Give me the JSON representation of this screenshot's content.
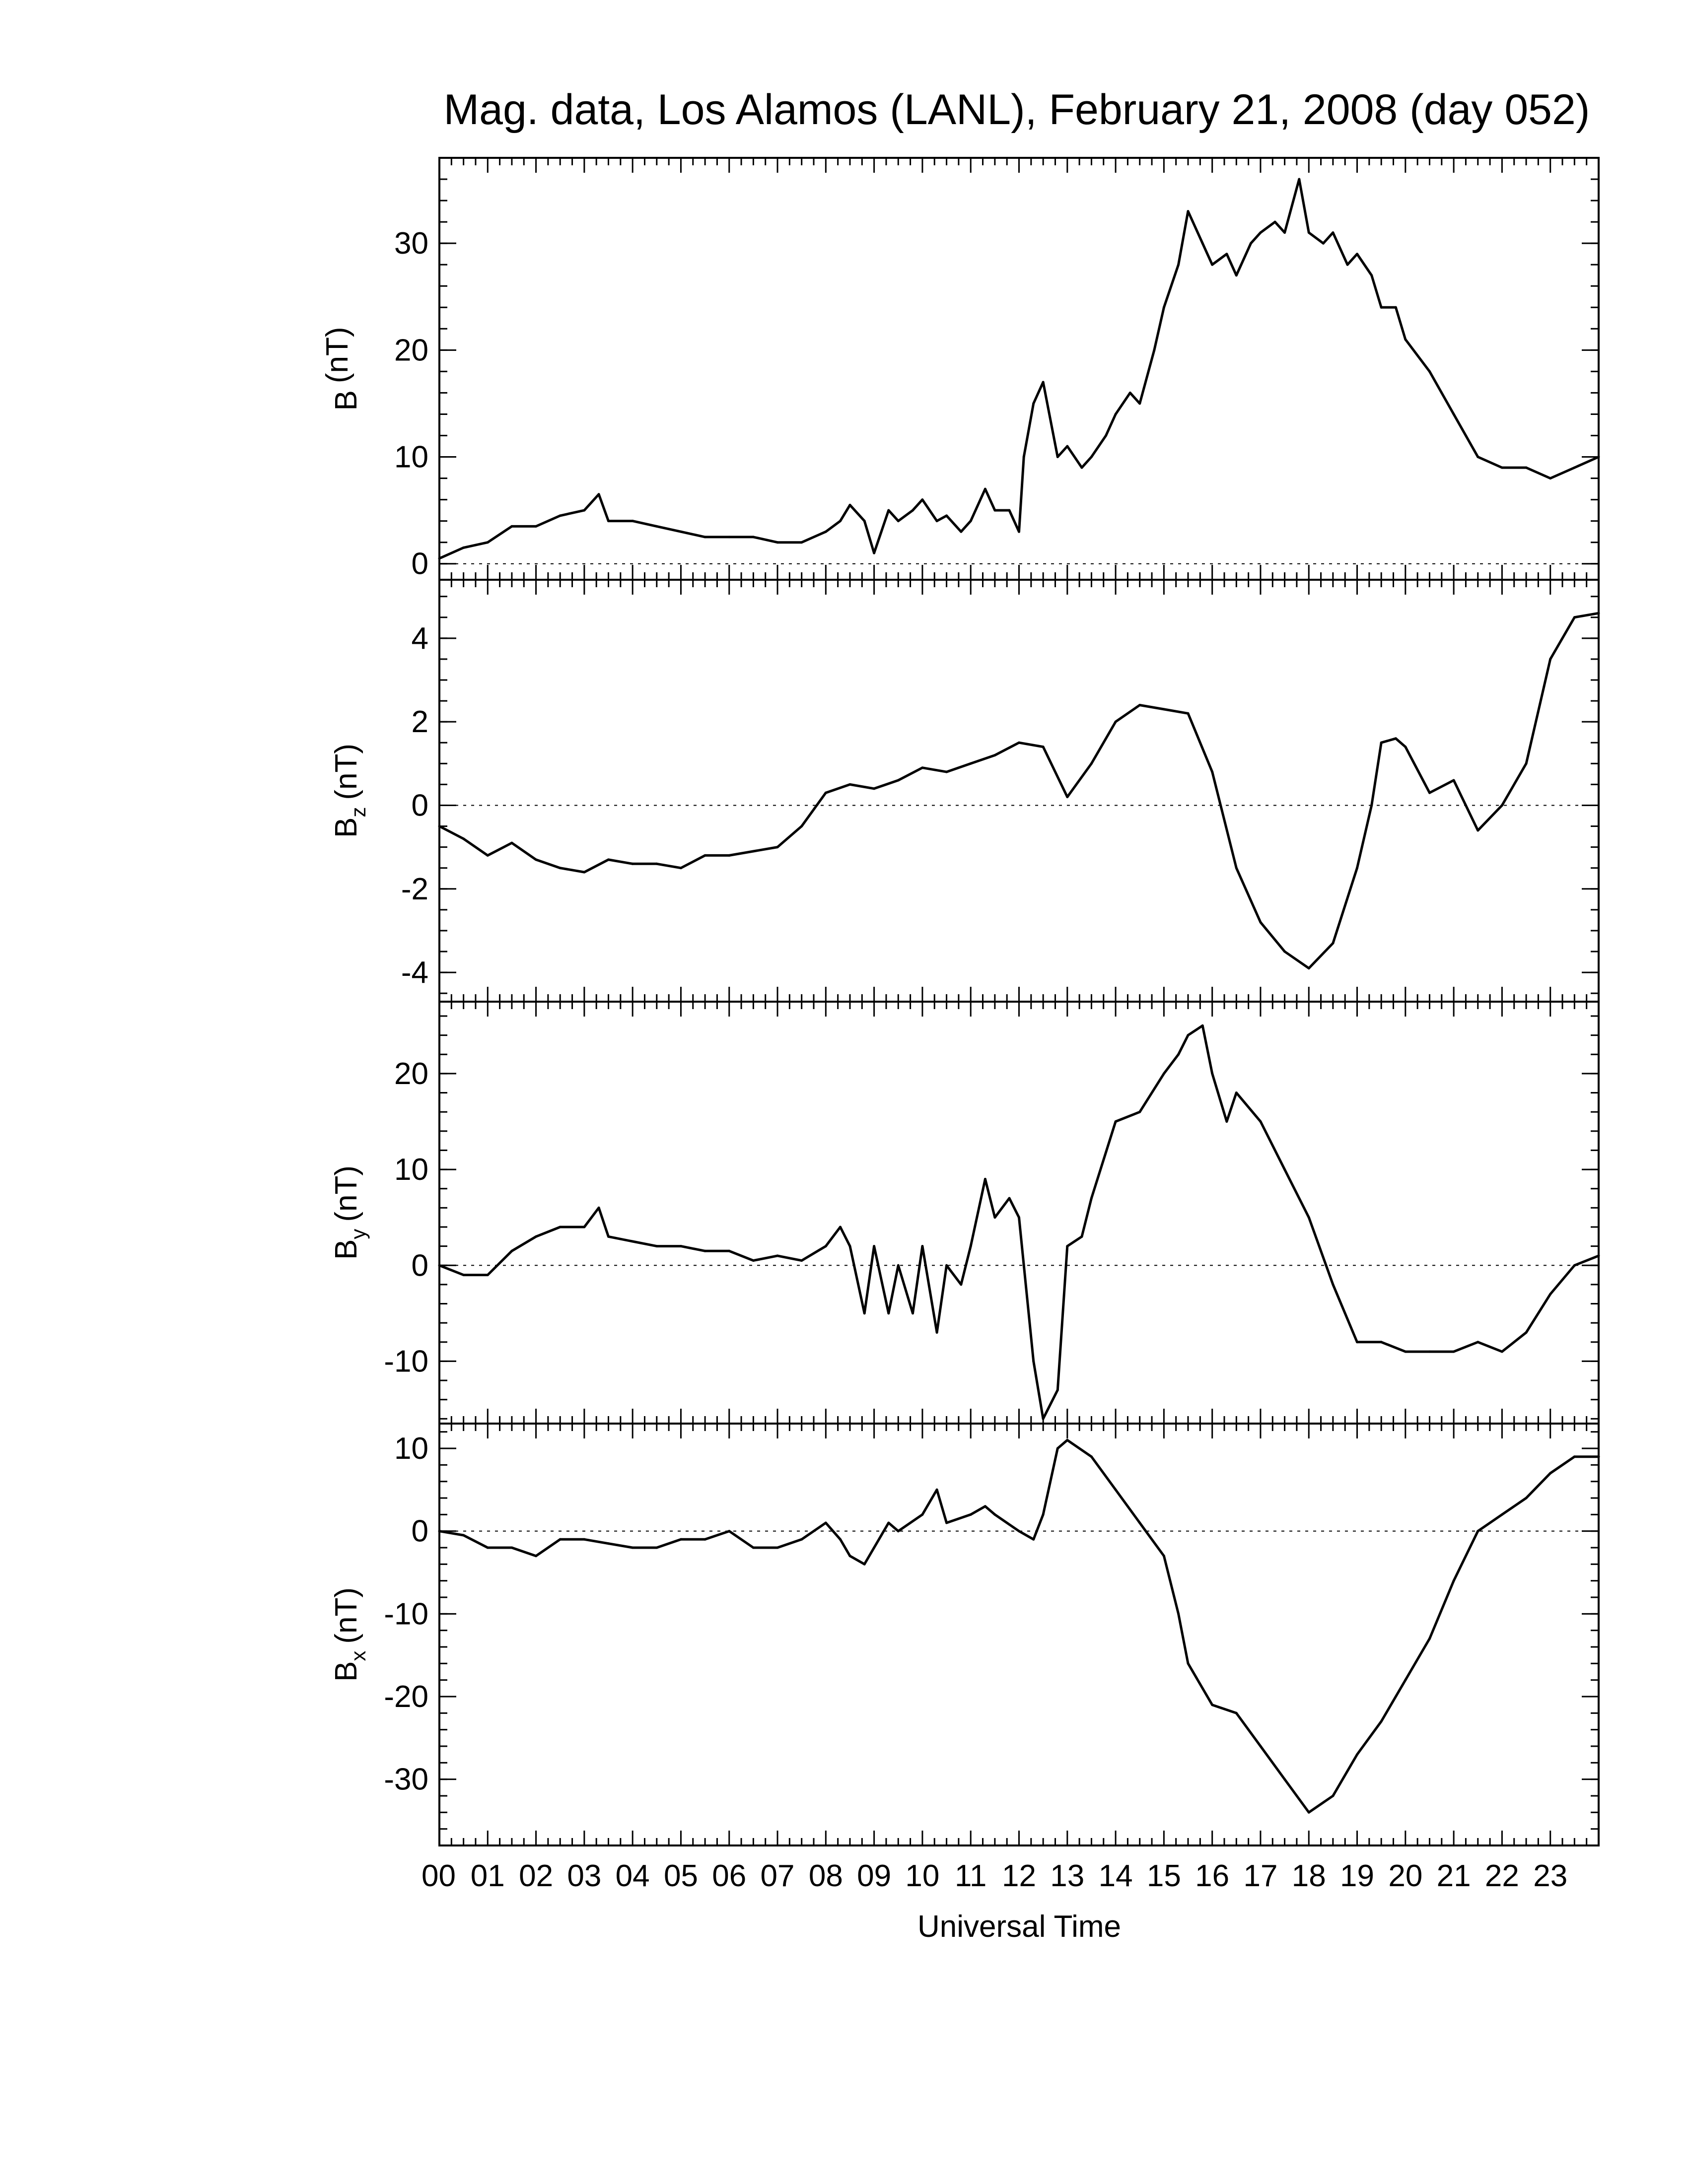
{
  "chart_data": {
    "type": "line",
    "title": "Mag. data, Los Alamos (LANL), February 21, 2008 (day 052)",
    "xlabel": "Universal Time",
    "xlim": [
      0,
      24
    ],
    "x_tick_labels": [
      "00",
      "01",
      "02",
      "03",
      "04",
      "05",
      "06",
      "07",
      "08",
      "09",
      "10",
      "11",
      "12",
      "13",
      "14",
      "15",
      "16",
      "17",
      "18",
      "19",
      "20",
      "21",
      "22",
      "23"
    ],
    "line_color": "#000000",
    "zero_line": "dotted",
    "panels": [
      {
        "ylabel_main": "B",
        "ylabel_sub": "",
        "ylabel_unit": "(nT)",
        "ylim": [
          -1.5,
          38
        ],
        "yticks": [
          0,
          10,
          20,
          30
        ],
        "x": [
          0,
          0.5,
          1,
          1.5,
          2,
          2.5,
          3,
          3.3,
          3.5,
          4,
          4.5,
          5,
          5.5,
          6,
          6.5,
          7,
          7.5,
          8,
          8.3,
          8.5,
          8.8,
          9,
          9.3,
          9.5,
          9.8,
          10,
          10.3,
          10.5,
          10.8,
          11,
          11.3,
          11.5,
          11.8,
          12,
          12.1,
          12.3,
          12.5,
          12.8,
          13,
          13.3,
          13.5,
          13.8,
          14,
          14.3,
          14.5,
          14.8,
          15,
          15.3,
          15.5,
          15.8,
          16,
          16.3,
          16.5,
          16.8,
          17,
          17.3,
          17.5,
          17.8,
          18,
          18.3,
          18.5,
          18.8,
          19,
          19.3,
          19.5,
          19.8,
          20,
          20.5,
          21,
          21.5,
          22,
          22.5,
          23,
          23.5,
          24
        ],
        "y": [
          0.5,
          1.5,
          2,
          3.5,
          3.5,
          4.5,
          5,
          6.5,
          4,
          4,
          3.5,
          3,
          2.5,
          2.5,
          2.5,
          2,
          2,
          3,
          4,
          5.5,
          4,
          1,
          5,
          4,
          5,
          6,
          4,
          4.5,
          3,
          4,
          7,
          5,
          5,
          3,
          10,
          15,
          17,
          10,
          11,
          9,
          10,
          12,
          14,
          16,
          15,
          20,
          24,
          28,
          33,
          30,
          28,
          29,
          27,
          30,
          31,
          32,
          31,
          36,
          31,
          30,
          31,
          28,
          29,
          27,
          24,
          24,
          21,
          18,
          14,
          10,
          9,
          9,
          8,
          9,
          10
        ]
      },
      {
        "ylabel_main": "B",
        "ylabel_sub": "z",
        "ylabel_unit": "(nT)",
        "ylim": [
          -4.7,
          5.4
        ],
        "yticks": [
          -4,
          -2,
          0,
          2,
          4
        ],
        "x": [
          0,
          0.5,
          1,
          1.5,
          2,
          2.5,
          3,
          3.5,
          4,
          4.5,
          5,
          5.5,
          6,
          6.5,
          7,
          7.5,
          8,
          8.5,
          9,
          9.5,
          10,
          10.5,
          11,
          11.5,
          12,
          12.5,
          13,
          13.5,
          14,
          14.5,
          15,
          15.5,
          16,
          16.5,
          17,
          17.5,
          18,
          18.5,
          19,
          19.3,
          19.5,
          19.8,
          20,
          20.5,
          21,
          21.5,
          22,
          22.5,
          23,
          23.5,
          24
        ],
        "y": [
          -0.5,
          -0.8,
          -1.2,
          -0.9,
          -1.3,
          -1.5,
          -1.6,
          -1.3,
          -1.4,
          -1.4,
          -1.5,
          -1.2,
          -1.2,
          -1.1,
          -1.0,
          -0.5,
          0.3,
          0.5,
          0.4,
          0.6,
          0.9,
          0.8,
          1.0,
          1.2,
          1.5,
          1.4,
          0.2,
          1.0,
          2.0,
          2.4,
          2.3,
          2.2,
          0.8,
          -1.5,
          -2.8,
          -3.5,
          -3.9,
          -3.3,
          -1.5,
          0.0,
          1.5,
          1.6,
          1.4,
          0.3,
          0.6,
          -0.6,
          0.0,
          1.0,
          3.5,
          4.5,
          4.6
        ]
      },
      {
        "ylabel_main": "B",
        "ylabel_sub": "y",
        "ylabel_unit": "(nT)",
        "ylim": [
          -16.5,
          27.5
        ],
        "yticks": [
          -10,
          0,
          10,
          20
        ],
        "x": [
          0,
          0.5,
          1,
          1.5,
          2,
          2.5,
          3,
          3.3,
          3.5,
          4,
          4.5,
          5,
          5.5,
          6,
          6.5,
          7,
          7.5,
          8,
          8.3,
          8.5,
          8.8,
          9,
          9.3,
          9.5,
          9.8,
          10,
          10.3,
          10.5,
          10.8,
          11,
          11.3,
          11.5,
          11.8,
          12,
          12.3,
          12.5,
          12.8,
          13,
          13.3,
          13.5,
          14,
          14.5,
          15,
          15.3,
          15.5,
          15.8,
          16,
          16.3,
          16.5,
          17,
          17.5,
          18,
          18.5,
          19,
          19.5,
          20,
          20.5,
          21,
          21.5,
          22,
          22.5,
          23,
          23.5,
          24
        ],
        "y": [
          0,
          -1,
          -1,
          1.5,
          3,
          4,
          4,
          6,
          3,
          2.5,
          2,
          2,
          1.5,
          1.5,
          0.5,
          1,
          0.5,
          2,
          4,
          2,
          -5,
          2,
          -5,
          0,
          -5,
          2,
          -7,
          0,
          -2,
          2,
          9,
          5,
          7,
          5,
          -10,
          -16,
          -13,
          2,
          3,
          7,
          15,
          16,
          20,
          22,
          24,
          25,
          20,
          15,
          18,
          15,
          10,
          5,
          -2,
          -8,
          -8,
          -9,
          -9,
          -9,
          -8,
          -9,
          -7,
          -3,
          0,
          1
        ]
      },
      {
        "ylabel_main": "B",
        "ylabel_sub": "x",
        "ylabel_unit": "(nT)",
        "ylim": [
          -38,
          13
        ],
        "yticks": [
          -30,
          -20,
          -10,
          0,
          10
        ],
        "x": [
          0,
          0.5,
          1,
          1.5,
          2,
          2.5,
          3,
          3.5,
          4,
          4.5,
          5,
          5.5,
          6,
          6.5,
          7,
          7.5,
          8,
          8.3,
          8.5,
          8.8,
          9,
          9.3,
          9.5,
          10,
          10.3,
          10.5,
          11,
          11.3,
          11.5,
          12,
          12.3,
          12.5,
          12.8,
          13,
          13.5,
          14,
          14.5,
          15,
          15.3,
          15.5,
          16,
          16.5,
          17,
          17.5,
          18,
          18.5,
          19,
          19.5,
          20,
          20.5,
          21,
          21.5,
          22,
          22.5,
          23,
          23.5,
          24
        ],
        "y": [
          0,
          -0.5,
          -2,
          -2,
          -3,
          -1,
          -1,
          -1.5,
          -2,
          -2,
          -1,
          -1,
          0,
          -2,
          -2,
          -1,
          1,
          -1,
          -3,
          -4,
          -2,
          1,
          0,
          2,
          5,
          1,
          2,
          3,
          2,
          0,
          -1,
          2,
          10,
          11,
          9,
          5,
          1,
          -3,
          -10,
          -16,
          -21,
          -22,
          -26,
          -30,
          -34,
          -32,
          -27,
          -23,
          -18,
          -13,
          -6,
          0,
          2,
          4,
          7,
          9,
          9
        ]
      }
    ]
  }
}
